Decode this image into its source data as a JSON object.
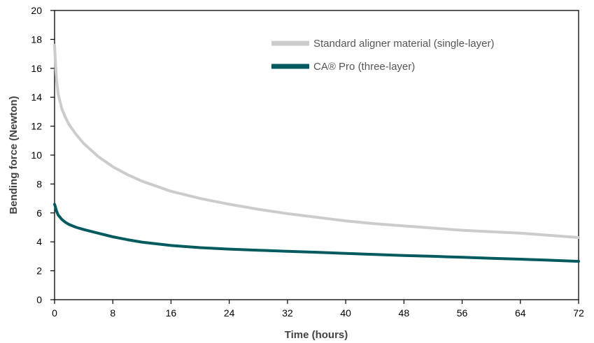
{
  "chart_data": {
    "type": "line",
    "xlabel": "Time (hours)",
    "ylabel": "Bending force (Newton)",
    "xlim": [
      0,
      72
    ],
    "ylim": [
      0,
      20
    ],
    "xticks": [
      0,
      8,
      16,
      24,
      32,
      40,
      48,
      56,
      64,
      72
    ],
    "yticks": [
      0,
      2,
      4,
      6,
      8,
      10,
      12,
      14,
      16,
      18,
      20
    ],
    "grid": false,
    "legend_position": "top-right",
    "series": [
      {
        "name": "Standard aligner material (single-layer)",
        "color": "#cccccc",
        "x": [
          0,
          0.1,
          0.25,
          0.5,
          1,
          1.5,
          2,
          3,
          4,
          6,
          8,
          10,
          12,
          16,
          20,
          24,
          28,
          32,
          36,
          40,
          44,
          48,
          52,
          56,
          60,
          64,
          68,
          72
        ],
        "y": [
          17.6,
          16.6,
          15.3,
          14.2,
          13.2,
          12.6,
          12.1,
          11.4,
          10.8,
          9.9,
          9.2,
          8.65,
          8.2,
          7.5,
          7.0,
          6.6,
          6.25,
          5.95,
          5.7,
          5.45,
          5.25,
          5.1,
          4.95,
          4.8,
          4.7,
          4.6,
          4.45,
          4.3
        ]
      },
      {
        "name": "CA® Pro (three-layer)",
        "color": "#005a5e",
        "x": [
          0,
          0.1,
          0.25,
          0.5,
          1,
          1.5,
          2,
          3,
          4,
          6,
          8,
          10,
          12,
          16,
          20,
          24,
          28,
          32,
          36,
          40,
          44,
          48,
          52,
          56,
          60,
          64,
          68,
          72
        ],
        "y": [
          6.6,
          6.45,
          6.15,
          5.85,
          5.55,
          5.35,
          5.2,
          5.0,
          4.85,
          4.6,
          4.35,
          4.15,
          3.98,
          3.75,
          3.6,
          3.5,
          3.42,
          3.35,
          3.28,
          3.2,
          3.13,
          3.06,
          3.0,
          2.93,
          2.86,
          2.8,
          2.73,
          2.65
        ]
      }
    ]
  }
}
